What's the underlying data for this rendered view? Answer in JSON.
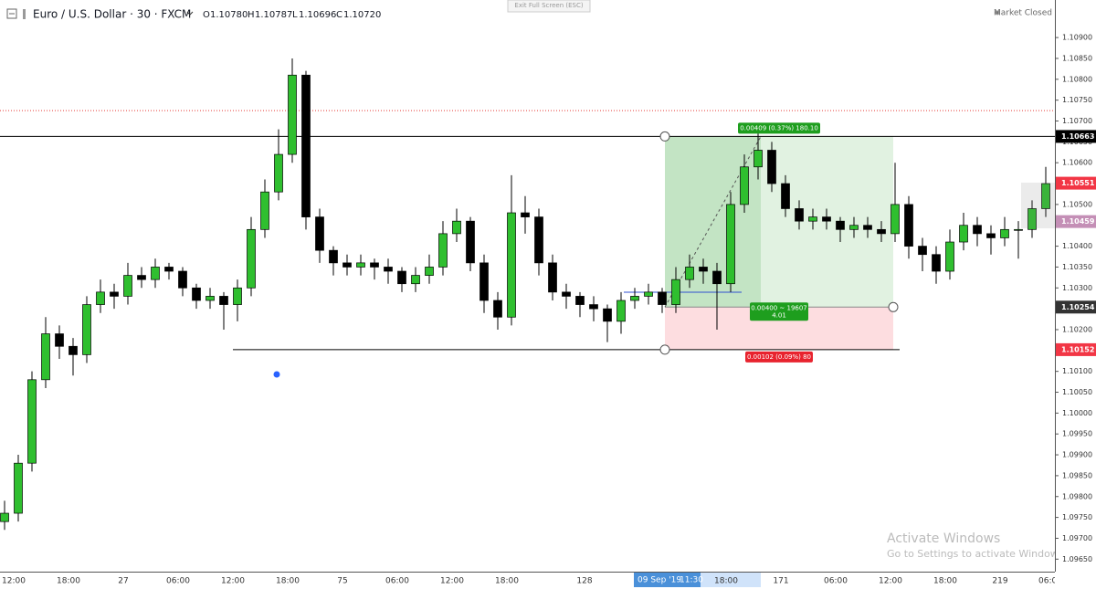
{
  "header": {
    "symbol": "Euro / U.S. Dollar · 30 · FXCM",
    "ohlc": [
      {
        "key": "O",
        "value": "1.10780"
      },
      {
        "key": "H",
        "value": "1.10787"
      },
      {
        "key": "L",
        "value": "1.10696"
      },
      {
        "key": "C",
        "value": "1.10720"
      }
    ],
    "exit_fullscreen": "Exit Full Screen (ESC)",
    "market_status": "Market Closed"
  },
  "watermark": {
    "title": "Activate Windows",
    "subtitle": "Go to Settings to activate Windows."
  },
  "chart_data": {
    "type": "candlestick",
    "up_color": "#2fbf2f",
    "down_color": "#000000",
    "grid": false,
    "xlim": [
      0,
      231
    ],
    "ylim": [
      1.0962,
      1.1099
    ],
    "x": [
      1,
      4,
      7,
      10,
      13,
      16,
      19,
      22,
      25,
      28,
      31,
      34,
      37,
      40,
      43,
      46,
      49,
      52,
      55,
      58,
      61,
      64,
      67,
      70,
      73,
      76,
      79,
      82,
      85,
      88,
      91,
      94,
      97,
      100,
      103,
      106,
      109,
      112,
      115,
      118,
      121,
      124,
      127,
      130,
      133,
      136,
      139,
      142,
      145,
      148,
      151,
      154,
      157,
      160,
      163,
      166,
      169,
      172,
      175,
      178,
      181,
      184,
      187,
      190,
      193,
      196,
      199,
      202,
      205,
      208,
      211,
      214,
      217,
      220,
      223,
      226,
      229
    ],
    "open": [
      1.0974,
      1.0976,
      1.0988,
      1.1008,
      1.1019,
      1.1016,
      1.1014,
      1.1026,
      1.1029,
      1.1028,
      1.1033,
      1.1032,
      1.1035,
      1.1034,
      1.103,
      1.1027,
      1.1028,
      1.1026,
      1.103,
      1.1044,
      1.1053,
      1.1062,
      1.1081,
      1.1047,
      1.1039,
      1.1036,
      1.1035,
      1.1036,
      1.1035,
      1.1034,
      1.1031,
      1.1033,
      1.1035,
      1.1043,
      1.1046,
      1.1036,
      1.1027,
      1.1023,
      1.1048,
      1.1047,
      1.1036,
      1.1029,
      1.1028,
      1.1026,
      1.1025,
      1.1022,
      1.1027,
      1.1028,
      1.1029,
      1.1026,
      1.1032,
      1.1035,
      1.1034,
      1.1031,
      1.105,
      1.1059,
      1.1063,
      1.1055,
      1.1049,
      1.1046,
      1.1047,
      1.1046,
      1.1044,
      1.1045,
      1.1044,
      1.1043,
      1.105,
      1.104,
      1.1038,
      1.1034,
      1.1041,
      1.1045,
      1.1043,
      1.1042,
      1.1044,
      1.1044,
      1.1049
    ],
    "high": [
      1.0979,
      1.099,
      1.101,
      1.1023,
      1.1021,
      1.1018,
      1.1028,
      1.1032,
      1.1031,
      1.1036,
      1.1035,
      1.1037,
      1.1036,
      1.1035,
      1.1031,
      1.103,
      1.1029,
      1.1032,
      1.1047,
      1.1056,
      1.1068,
      1.1085,
      1.1082,
      1.1049,
      1.104,
      1.1038,
      1.1038,
      1.1037,
      1.1037,
      1.1035,
      1.1035,
      1.1038,
      1.1046,
      1.1049,
      1.1047,
      1.1038,
      1.1029,
      1.1057,
      1.1052,
      1.1049,
      1.1038,
      1.1031,
      1.1029,
      1.1028,
      1.1026,
      1.1029,
      1.103,
      1.1031,
      1.103,
      1.1035,
      1.1038,
      1.1037,
      1.1036,
      1.1053,
      1.1062,
      1.1068,
      1.1065,
      1.1057,
      1.1051,
      1.1049,
      1.1049,
      1.1047,
      1.1047,
      1.1047,
      1.1046,
      1.106,
      1.1052,
      1.1042,
      1.104,
      1.1044,
      1.1048,
      1.1047,
      1.1045,
      1.1047,
      1.1046,
      1.1051,
      1.1059
    ],
    "low": [
      1.0972,
      1.0974,
      1.0986,
      1.1006,
      1.1013,
      1.1009,
      1.1012,
      1.1024,
      1.1025,
      1.1026,
      1.103,
      1.103,
      1.1032,
      1.1028,
      1.1025,
      1.1025,
      1.102,
      1.1022,
      1.1028,
      1.1042,
      1.1051,
      1.106,
      1.1044,
      1.1036,
      1.1033,
      1.1033,
      1.1033,
      1.1032,
      1.1031,
      1.1029,
      1.1029,
      1.1031,
      1.1033,
      1.1041,
      1.1034,
      1.1024,
      1.102,
      1.1021,
      1.1043,
      1.1033,
      1.1027,
      1.1025,
      1.1023,
      1.1022,
      1.1017,
      1.1019,
      1.1025,
      1.1026,
      1.1024,
      1.1024,
      1.103,
      1.1031,
      1.102,
      1.1029,
      1.1048,
      1.1056,
      1.1053,
      1.1047,
      1.1044,
      1.1044,
      1.1044,
      1.1041,
      1.1042,
      1.1042,
      1.1041,
      1.1041,
      1.1037,
      1.1034,
      1.1031,
      1.1032,
      1.1039,
      1.104,
      1.1038,
      1.104,
      1.1037,
      1.1042,
      1.1047
    ],
    "close": [
      1.0976,
      1.0988,
      1.1008,
      1.1019,
      1.1016,
      1.1014,
      1.1026,
      1.1029,
      1.1028,
      1.1033,
      1.1032,
      1.1035,
      1.1034,
      1.103,
      1.1027,
      1.1028,
      1.1026,
      1.103,
      1.1044,
      1.1053,
      1.1062,
      1.1081,
      1.1047,
      1.1039,
      1.1036,
      1.1035,
      1.1036,
      1.1035,
      1.1034,
      1.1031,
      1.1033,
      1.1035,
      1.1043,
      1.1046,
      1.1036,
      1.1027,
      1.1023,
      1.1048,
      1.1047,
      1.1036,
      1.1029,
      1.1028,
      1.1026,
      1.1025,
      1.1022,
      1.1027,
      1.1028,
      1.1029,
      1.1026,
      1.1032,
      1.1035,
      1.1034,
      1.1031,
      1.105,
      1.1059,
      1.1063,
      1.1055,
      1.1049,
      1.1046,
      1.1047,
      1.1046,
      1.1044,
      1.1045,
      1.1044,
      1.1043,
      1.105,
      1.104,
      1.1038,
      1.1034,
      1.1041,
      1.1045,
      1.1043,
      1.1042,
      1.1044,
      1.1044,
      1.1049,
      1.1055
    ],
    "xticks": [
      {
        "value": 3,
        "label": "12:00"
      },
      {
        "value": 15,
        "label": "18:00"
      },
      27,
      {
        "value": 39,
        "label": "06:00"
      },
      {
        "value": 51,
        "label": "12:00"
      },
      {
        "value": 63,
        "label": "18:00"
      },
      75,
      {
        "value": 87,
        "label": "06:00"
      },
      {
        "value": 99,
        "label": "12:00"
      },
      {
        "value": 111,
        "label": "18:00"
      },
      128,
      {
        "value": 159,
        "label": "18:00"
      },
      171,
      {
        "value": 183,
        "label": "06:00"
      },
      {
        "value": 195,
        "label": "12:00"
      },
      {
        "value": 207,
        "label": "18:00"
      },
      219,
      {
        "value": 230,
        "label": "06:00"
      }
    ],
    "yticks": [
      {
        "value": 1.109,
        "label": "1.10900"
      },
      {
        "value": 1.1085,
        "label": "1.10850"
      },
      {
        "value": 1.108,
        "label": "1.10800"
      },
      {
        "value": 1.1075,
        "label": "1.10750"
      },
      {
        "value": 1.107,
        "label": "1.10700"
      },
      {
        "value": 1.1065,
        "label": "1.10650"
      },
      {
        "value": 1.106,
        "label": "1.10600"
      },
      {
        "value": 1.1055,
        "label": "1.10550"
      },
      {
        "value": 1.105,
        "label": "1.10500"
      },
      {
        "value": 1.1045,
        "label": "1.10450"
      },
      {
        "value": 1.104,
        "label": "1.10400"
      },
      {
        "value": 1.1035,
        "label": "1.10350"
      },
      {
        "value": 1.103,
        "label": "1.10300"
      },
      {
        "value": 1.1025,
        "label": "1.10250"
      },
      {
        "value": 1.102,
        "label": "1.10200"
      },
      {
        "value": 1.1015,
        "label": "1.10150"
      },
      {
        "value": 1.101,
        "label": "1.10100"
      },
      {
        "value": 1.1005,
        "label": "1.10050"
      },
      {
        "value": 1.1,
        "label": "1.10000"
      },
      {
        "value": 1.0995,
        "label": "1.09950"
      },
      {
        "value": 1.099,
        "label": "1.09900"
      },
      {
        "value": 1.0985,
        "label": "1.09850"
      },
      {
        "value": 1.098,
        "label": "1.09800"
      },
      {
        "value": 1.0975,
        "label": "1.09750"
      },
      {
        "value": 1.097,
        "label": "1.09700"
      },
      {
        "value": 1.0965,
        "label": "1.09650"
      }
    ],
    "price_badges": [
      {
        "value": 1.10663,
        "color": "#000000"
      },
      {
        "value": 1.10551,
        "color": "#f23645"
      },
      {
        "value": 1.10459,
        "color": "#c48fb6"
      },
      {
        "value": 1.10254,
        "color": "#333333"
      },
      {
        "value": 1.10152,
        "color": "#f23645"
      }
    ],
    "horizontal_line": {
      "value": 1.10663,
      "color": "#000000"
    },
    "alert_line": {
      "value": 1.10725,
      "color": "#e53935"
    },
    "ray": {
      "value": 1.10152,
      "x_start": 51,
      "x_end": 197,
      "color": "#000000"
    },
    "position": {
      "x_start": 145.6,
      "x_end": 195.6,
      "x_current": 166.6,
      "entry": 1.10254,
      "target": 1.10663,
      "stop": 1.10152,
      "target_label": "0.00409 (0.37%) 180.10",
      "entry_label": "0.00400 ~ 19607",
      "ratio": 4.01,
      "stop_label": "0.00102 (0.09%) 80"
    },
    "crosshair": {
      "x": 146,
      "date": "09 Sep '19",
      "time": "11:30"
    }
  }
}
